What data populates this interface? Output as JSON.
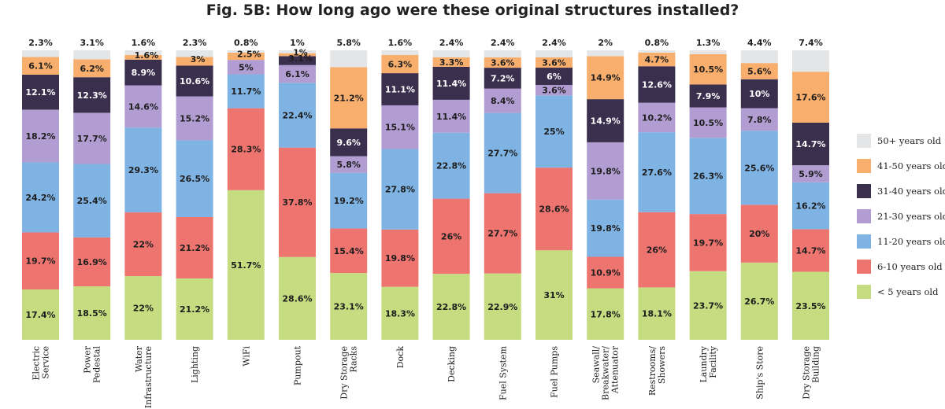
{
  "chart_data": {
    "type": "bar",
    "stacked": true,
    "normalized_percent": true,
    "title": "Fig. 5B: How long ago were these original structures installed?",
    "categories": [
      "Electric Service",
      "Power Pedestal",
      "Water Infrastructure",
      "Lighting",
      "WiFi",
      "Pumpout",
      "Dry Storage Racks",
      "Dock",
      "Decking",
      "Fuel System",
      "Fuel Pumps",
      "Seawall/ Breakwater/ Attenuator",
      "Restrooms/ Showers",
      "Laundry Facility",
      "Ship's Store",
      "Dry Storage Building"
    ],
    "category_lines": [
      [
        "Electric",
        "Service"
      ],
      [
        "Power",
        "Pedestal"
      ],
      [
        "Water",
        "Infrastructure"
      ],
      [
        "Lighting"
      ],
      [
        "WiFi"
      ],
      [
        "Pumpout"
      ],
      [
        "Dry Storage",
        "Racks"
      ],
      [
        "Dock"
      ],
      [
        "Decking"
      ],
      [
        "Fuel System"
      ],
      [
        "Fuel Pumps"
      ],
      [
        "Seawall/",
        "Breakwater/",
        "Attenuator"
      ],
      [
        "Restrooms/",
        "Showers"
      ],
      [
        "Laundry",
        "Facility"
      ],
      [
        "Ship's Store"
      ],
      [
        "Dry Storage",
        "Building"
      ]
    ],
    "series": [
      {
        "name": "< 5 years old",
        "color": "#c5dc80",
        "values": [
          17.4,
          18.5,
          22,
          21.2,
          51.7,
          28.6,
          23.1,
          18.3,
          22.8,
          22.9,
          31,
          17.8,
          18.1,
          23.7,
          26.7,
          23.5
        ],
        "labels": [
          "17.4%",
          "18.5%",
          "22%",
          "21.2%",
          "51.7%",
          "28.6%",
          "23.1%",
          "18.3%",
          "22.8%",
          "22.9%",
          "31%",
          "17.8%",
          "18.1%",
          "23.7%",
          "26.7%",
          "23.5%"
        ]
      },
      {
        "name": "6-10 years old",
        "color": "#ee7470",
        "values": [
          19.7,
          16.9,
          22,
          21.2,
          28.3,
          37.8,
          15.4,
          19.8,
          26,
          27.7,
          28.6,
          10.9,
          26,
          19.7,
          20,
          14.7
        ],
        "labels": [
          "19.7%",
          "16.9%",
          "22%",
          "21.2%",
          "28.3%",
          "37.8%",
          "15.4%",
          "19.8%",
          "26%",
          "27.7%",
          "28.6%",
          "10.9%",
          "26%",
          "19.7%",
          "20%",
          "14.7%"
        ]
      },
      {
        "name": "11-20 years old",
        "color": "#7fb3e3",
        "values": [
          24.2,
          25.4,
          29.3,
          26.5,
          11.7,
          22.4,
          19.2,
          27.8,
          22.8,
          27.7,
          25,
          19.8,
          27.6,
          26.3,
          25.6,
          16.2
        ],
        "labels": [
          "24.2%",
          "25.4%",
          "29.3%",
          "26.5%",
          "11.7%",
          "22.4%",
          "19.2%",
          "27.8%",
          "22.8%",
          "27.7%",
          "25%",
          "19.8%",
          "27.6%",
          "26.3%",
          "25.6%",
          "16.2%"
        ]
      },
      {
        "name": "21-30 years old",
        "color": "#b19dd2",
        "values": [
          18.2,
          17.7,
          14.6,
          15.2,
          5,
          6.1,
          5.8,
          15.1,
          11.4,
          8.4,
          3.6,
          19.8,
          10.2,
          10.5,
          7.8,
          5.9
        ],
        "labels": [
          "18.2%",
          "17.7%",
          "14.6%",
          "15.2%",
          "5%",
          "6.1%",
          "5.8%",
          "15.1%",
          "11.4%",
          "8.4%",
          "3.6%",
          "19.8%",
          "10.2%",
          "10.5%",
          "7.8%",
          "5.9%"
        ]
      },
      {
        "name": "31-40 years old",
        "color": "#3b2f4e",
        "values": [
          12.1,
          12.3,
          8.9,
          10.6,
          0,
          3.1,
          9.6,
          11.1,
          11.4,
          7.2,
          6,
          14.9,
          12.6,
          7.9,
          10,
          14.7
        ],
        "labels": [
          "12.1%",
          "12.3%",
          "8.9%",
          "10.6%",
          "",
          "3.1%",
          "9.6%",
          "11.1%",
          "11.4%",
          "7.2%",
          "6%",
          "14.9%",
          "12.6%",
          "7.9%",
          "10%",
          "14.7%"
        ]
      },
      {
        "name": "41-50 years old",
        "color": "#f8ae6c",
        "values": [
          6.1,
          6.2,
          1.6,
          3,
          2.5,
          1,
          21.2,
          6.3,
          3.3,
          3.6,
          3.6,
          14.9,
          4.7,
          10.5,
          5.6,
          17.6
        ],
        "labels": [
          "6.1%",
          "6.2%",
          "1.6%",
          "3%",
          "2.5%",
          "1%",
          "21.2%",
          "6.3%",
          "3.3%",
          "3.6%",
          "3.6%",
          "14.9%",
          "4.7%",
          "10.5%",
          "5.6%",
          "17.6%"
        ]
      },
      {
        "name": "50+ years old",
        "color": "#e4e5e6",
        "values": [
          2.3,
          3.1,
          1.6,
          2.3,
          0.8,
          1,
          5.8,
          1.6,
          2.4,
          2.4,
          2.4,
          2,
          0.8,
          1.3,
          4.4,
          7.4
        ],
        "labels": [
          "2.3%",
          "3.1%",
          "1.6%",
          "2.3%",
          "0.8%",
          "1%",
          "5.8%",
          "1.6%",
          "2.4%",
          "2.4%",
          "2.4%",
          "2%",
          "0.8%",
          "1.3%",
          "4.4%",
          "7.4%"
        ]
      }
    ],
    "legend_position": "right",
    "grid": false
  }
}
